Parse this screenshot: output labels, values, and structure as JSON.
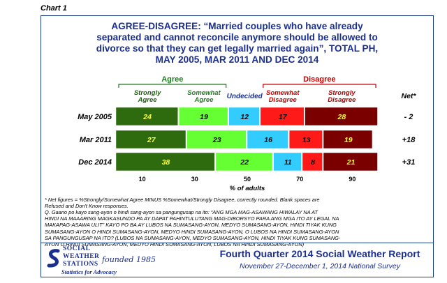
{
  "chart_label": "Chart 1",
  "title_lines": [
    "AGREE-DISAGREE: “Married couples who have already",
    "separated and cannot reconcile anymore should be allowed to",
    "divorce so that they can get legally married again”, TOTAL PH,",
    "MAY 2005, MAR 2011 AND DEC 2014"
  ],
  "footnote_lines": [
    "* Net figures = %Strongly/Somewhat Agree MINUS %Somewhat/Strongly Disagree, correctly rounded. Blank spaces are",
    "Refused and Don't Know responses."
  ],
  "question_lines": [
    "Q. Gaano po kayo sang-ayon o hindi sang-ayon sa pangungusap na ito: “ANG MGA MAG-ASAWANG HIWALAY NA AT",
    "HINDI NA MAAARING MAGKASUNDO PA AY DAPAT PAHINTULUTANG MAG-DIBORSYO PARA ANG MGA ITO AY LEGAL NA",
    "MAKAPAG-ASAWA ULIT” KAYO PO BA AY LUBOS NA SUMASANG-AYON, MEDYO SUMASANG-AYON, HINDI TIYAK KUNG",
    "SUMASANG-AYON O HINDI SUMASANG-AYON, MEDYO HINDI SUMASANG-AYON, O LUBOS NA HINDI SUMASANG-AYON",
    "SA PANGUNGUSAP NA ITO? (LUBOS NA SUMASANG-AYON, MEDYO SUMASANG-AYON, HINDI TIYAK KUNG SUMASANG-",
    "AYON O HINDI SUMASANG-AYON, MEDYO HINDI SUMASANG-AYON, LUBOS NA HINDI SUMASANG-AYON)"
  ],
  "logo": {
    "line1": "SOCIAL",
    "line2": "WEATHER",
    "line3": "STATIONS",
    "script": "founded 1985",
    "tagline": "Statistics for Advocacy"
  },
  "report": {
    "title": "Fourth Quarter 2014 Social Weather Report",
    "subtitle": "November 27-December 1, 2014 National Survey"
  },
  "chart_data": {
    "type": "bar",
    "orientation": "horizontal",
    "stacked": true,
    "categories": [
      "May 2005",
      "Mar 2011",
      "Dec 2014"
    ],
    "series": [
      {
        "name": "Strongly Agree",
        "group": "Agree",
        "color": "#2e6b0f",
        "text_color": "#ffff33",
        "values": [
          24,
          27,
          38
        ]
      },
      {
        "name": "Somewhat Agree",
        "group": "Agree",
        "color": "#66ff33",
        "text_color": "#000000",
        "values": [
          19,
          23,
          22
        ]
      },
      {
        "name": "Undecided",
        "group": "",
        "color": "#33ccff",
        "text_color": "#000000",
        "values": [
          12,
          16,
          11
        ]
      },
      {
        "name": "Somewhat Disagree",
        "group": "Disagree",
        "color": "#ff1a1a",
        "text_color": "#000000",
        "values": [
          17,
          13,
          8
        ]
      },
      {
        "name": "Strongly Disagree",
        "group": "Disagree",
        "color": "#7a0000",
        "text_color": "#ffff33",
        "values": [
          28,
          19,
          21
        ]
      }
    ],
    "group_labels": {
      "agree": "Agree",
      "disagree": "Disagree"
    },
    "net_header": "Net*",
    "net": [
      "- 2",
      "+18",
      "+31"
    ],
    "xlabel": "% of adults",
    "xticks": [
      10,
      30,
      50,
      70,
      90
    ],
    "xlim": [
      0,
      100
    ],
    "grid": false,
    "legend": "top"
  }
}
